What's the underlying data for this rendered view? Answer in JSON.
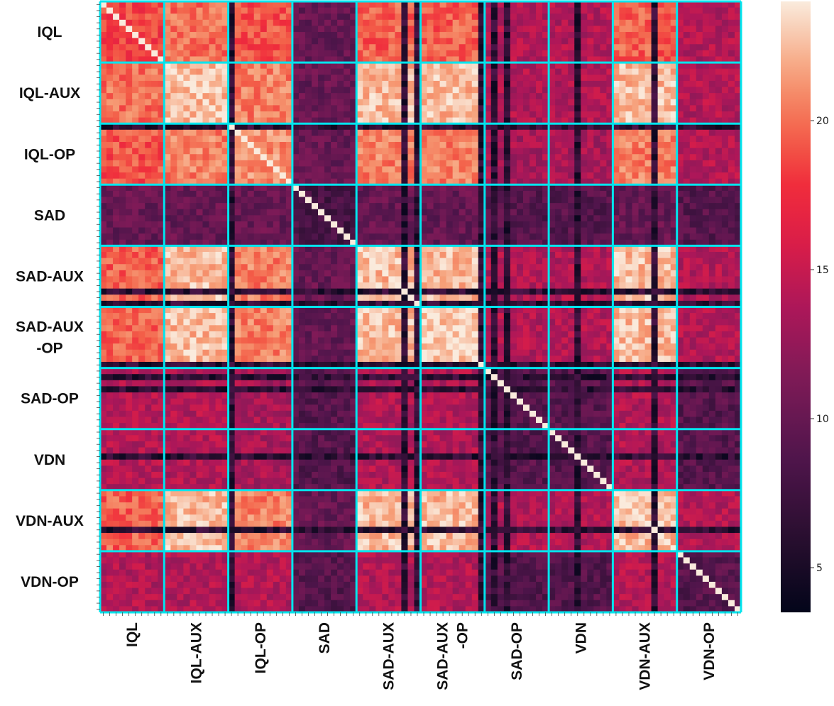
{
  "chart_data": {
    "type": "heatmap",
    "title": "",
    "xlabel": "",
    "ylabel": "",
    "groups": [
      "IQL",
      "IQL-AUX",
      "IQL-OP",
      "SAD",
      "SAD-AUX",
      "SAD-AUX\n-OP",
      "SAD-OP",
      "VDN",
      "VDN-AUX",
      "VDN-OP"
    ],
    "cells_per_group": 10,
    "diagonal_value": 24,
    "colorbar": {
      "min": 3.5,
      "max": 24,
      "ticks": [
        5,
        10,
        15,
        20
      ]
    },
    "group_means": [
      [
        18.5,
        20.0,
        19.0,
        10.0,
        19.5,
        19.5,
        14.0,
        14.0,
        19.5,
        14.0
      ],
      [
        20.0,
        22.5,
        20.5,
        10.0,
        22.5,
        22.5,
        14.0,
        14.0,
        22.5,
        14.0
      ],
      [
        19.0,
        20.5,
        21.0,
        10.0,
        20.5,
        20.5,
        13.5,
        13.5,
        20.5,
        14.0
      ],
      [
        10.0,
        10.0,
        10.0,
        8.0,
        10.0,
        10.0,
        9.0,
        9.0,
        10.0,
        9.0
      ],
      [
        19.5,
        22.5,
        20.5,
        10.0,
        22.5,
        22.5,
        14.0,
        14.0,
        22.5,
        14.0
      ],
      [
        19.5,
        22.5,
        20.5,
        10.0,
        22.5,
        23.0,
        14.0,
        14.0,
        22.5,
        14.0
      ],
      [
        14.0,
        14.0,
        13.5,
        9.0,
        14.0,
        14.0,
        9.0,
        9.0,
        14.0,
        9.0
      ],
      [
        14.0,
        14.0,
        13.5,
        9.0,
        14.0,
        14.0,
        9.0,
        9.0,
        14.0,
        9.0
      ],
      [
        19.5,
        22.5,
        20.5,
        10.0,
        22.5,
        22.5,
        14.0,
        14.0,
        22.5,
        14.0
      ],
      [
        14.0,
        14.0,
        14.0,
        9.0,
        14.0,
        14.0,
        9.0,
        9.0,
        14.0,
        9.0
      ]
    ],
    "colormap": "rocket",
    "separator_color": "#00e5ee"
  }
}
